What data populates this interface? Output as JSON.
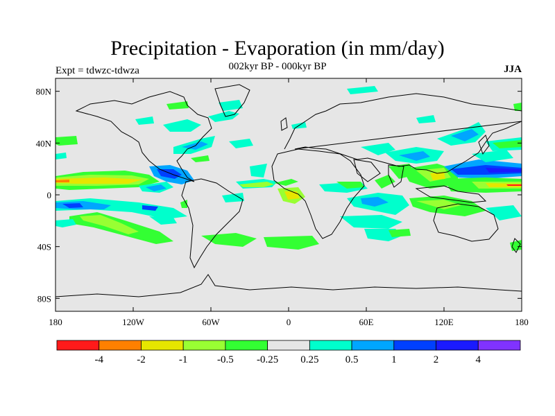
{
  "map": {
    "title": "Precipitation - Evaporation (in mm/day)",
    "subtitle": "002kyr BP - 000kyr BP",
    "left_label": "Expt = tdwzc-tdwza",
    "right_label": "JJA",
    "lat_ticks": [
      "80N",
      "40N",
      "0",
      "40S",
      "80S"
    ],
    "lon_ticks": [
      "180",
      "120W",
      "60W",
      "0",
      "60E",
      "120E",
      "180"
    ],
    "colors": {
      "ocean_background": "#e6e6e6",
      "coastline": "#000000"
    },
    "colorbar": {
      "colors": [
        "#ff1a1a",
        "#ff8000",
        "#e6e600",
        "#99ff33",
        "#33ff33",
        "#e6e6e6",
        "#00ffcc",
        "#00a6ff",
        "#0040ff",
        "#1a1aff",
        "#8033ff"
      ],
      "labels": [
        "-4",
        "-2",
        "-1",
        "-0.5",
        "-0.25",
        "0.25",
        "0.5",
        "1",
        "2",
        "4"
      ]
    }
  }
}
